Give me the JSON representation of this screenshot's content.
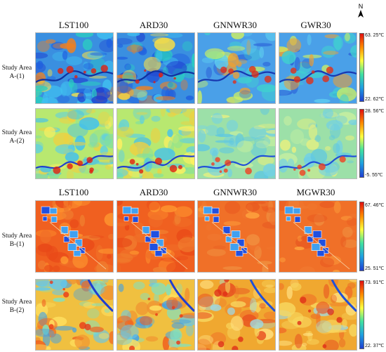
{
  "section_a": {
    "headers": [
      "LST100",
      "ARD30",
      "GNNWR30",
      "GWR30"
    ],
    "rows": [
      {
        "label_line1": "Study Area",
        "label_line2": "A-(1)",
        "max": "63. 25℃",
        "min": "22. 62℃",
        "scheme": "A1"
      },
      {
        "label_line1": "Study Area",
        "label_line2": "A-(2)",
        "max": "28. 56℃",
        "min": "-5. 55℃",
        "scheme": "A2"
      }
    ]
  },
  "section_b": {
    "headers": [
      "LST100",
      "ARD30",
      "GNNWR30",
      "MGWR30"
    ],
    "rows": [
      {
        "label_line1": "Study Area",
        "label_line2": "B-(1)",
        "max": "67. 46℃",
        "min": "25. 51℃",
        "scheme": "B1"
      },
      {
        "label_line1": "Study Area",
        "label_line2": "B-(2)",
        "max": "73. 91℃",
        "min": "22. 37℃",
        "scheme": "B2"
      }
    ]
  },
  "north_arrow": {
    "label": "N"
  },
  "colors": {
    "low": "#1f3fd0",
    "mid": "#ffff40",
    "high": "#e01010"
  }
}
